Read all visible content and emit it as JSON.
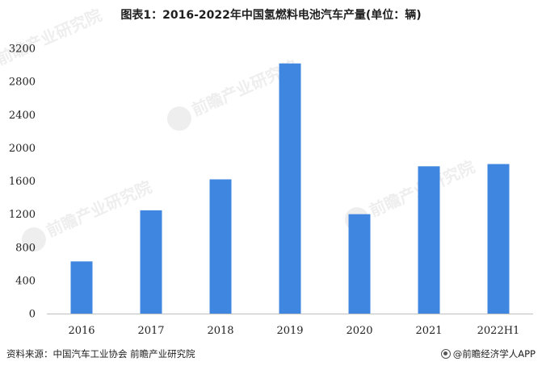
{
  "title": "图表1：2016-2022年中国氢燃料电池汽车产量(单位：辆)",
  "watermark": "前瞻产业研究院",
  "footer": {
    "source": "资料来源：中国汽车工业协会 前瞻产业研究院",
    "brand": "@前瞻经济学人APP"
  },
  "chart_data": {
    "type": "bar",
    "categories": [
      "2016",
      "2017",
      "2018",
      "2019",
      "2020",
      "2021",
      "2022H1"
    ],
    "series": [
      {
        "values": [
          629,
          1246,
          1619,
          3018,
          1199,
          1777,
          1804
        ]
      }
    ],
    "ylim": [
      0,
      3200
    ],
    "yticks": [
      0,
      400,
      800,
      1200,
      1600,
      2000,
      2400,
      2800,
      3200
    ],
    "grid": false,
    "bar_color": "#3f86e0"
  }
}
